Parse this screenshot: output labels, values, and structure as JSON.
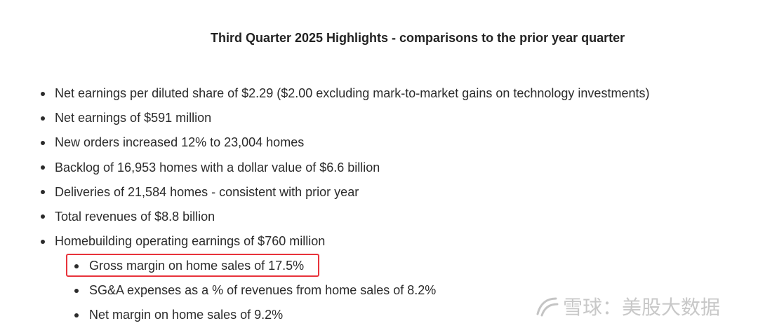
{
  "heading": "Third Quarter 2025 Highlights - comparisons to the prior year quarter",
  "bullets": [
    "Net earnings per diluted share of $2.29 ($2.00 excluding mark-to-market gains on technology investments)",
    "Net earnings of $591 million",
    "New orders increased 12% to 23,004 homes",
    "Backlog of 16,953 homes with a dollar value of $6.6 billion",
    "Deliveries of 21,584 homes - consistent with prior year",
    "Total revenues of $8.8 billion",
    "Homebuilding operating earnings of $760 million"
  ],
  "sub_bullets": [
    "Gross margin on home sales of 17.5%",
    "SG&A expenses as a % of revenues from home sales of 8.2%",
    "Net margin on home sales of 9.2%"
  ],
  "highlight_color": "#e8333b",
  "watermark": {
    "icon": "snowball-logo-icon",
    "text": "雪球：美股大数据"
  }
}
